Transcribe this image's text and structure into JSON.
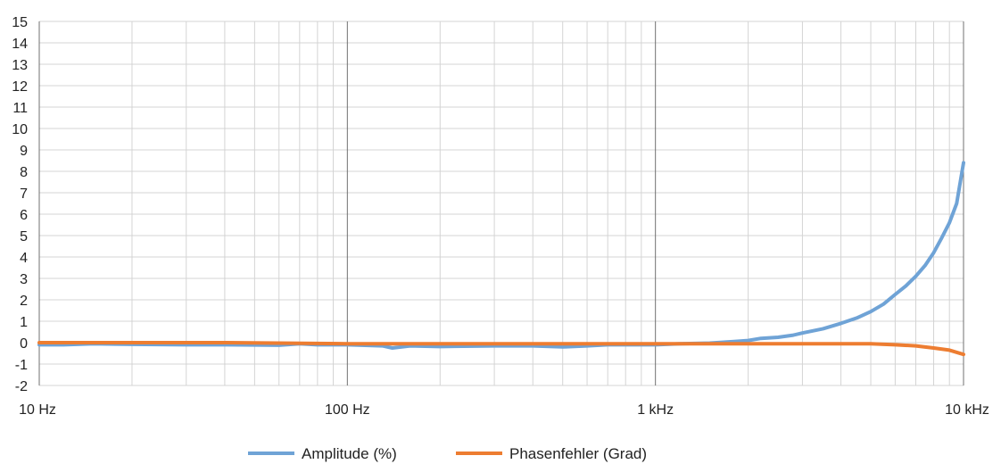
{
  "chart_data": {
    "type": "line",
    "x_scale": "log",
    "xlim": [
      10,
      10000
    ],
    "ylim": [
      -2,
      15
    ],
    "grid": true,
    "legend_position": "bottom",
    "x_ticks": [
      {
        "value": 10,
        "label": "10 Hz"
      },
      {
        "value": 100,
        "label": "100 Hz"
      },
      {
        "value": 1000,
        "label": "1 kHz"
      },
      {
        "value": 10000,
        "label": "10 kHz"
      }
    ],
    "y_ticks": [
      {
        "value": 15,
        "label": "15"
      },
      {
        "value": 14,
        "label": "14"
      },
      {
        "value": 13,
        "label": "13"
      },
      {
        "value": 12,
        "label": "12"
      },
      {
        "value": 11,
        "label": "11"
      },
      {
        "value": 10,
        "label": "10"
      },
      {
        "value": 9,
        "label": "9"
      },
      {
        "value": 8,
        "label": "8"
      },
      {
        "value": 7,
        "label": "7"
      },
      {
        "value": 6,
        "label": "6"
      },
      {
        "value": 5,
        "label": "5"
      },
      {
        "value": 4,
        "label": "4"
      },
      {
        "value": 3,
        "label": "3"
      },
      {
        "value": 2,
        "label": "2"
      },
      {
        "value": 1,
        "label": "1"
      },
      {
        "value": 0,
        "label": "0"
      },
      {
        "value": -1,
        "label": "-1"
      },
      {
        "value": -2,
        "label": "-2"
      }
    ],
    "series": [
      {
        "name": "Amplitude (%)",
        "color": "#6fa3d6",
        "points": [
          [
            10,
            -0.1
          ],
          [
            12,
            -0.1
          ],
          [
            15,
            -0.05
          ],
          [
            20,
            -0.08
          ],
          [
            30,
            -0.1
          ],
          [
            40,
            -0.1
          ],
          [
            60,
            -0.12
          ],
          [
            70,
            -0.05
          ],
          [
            80,
            -0.1
          ],
          [
            100,
            -0.1
          ],
          [
            130,
            -0.15
          ],
          [
            140,
            -0.25
          ],
          [
            160,
            -0.15
          ],
          [
            200,
            -0.18
          ],
          [
            300,
            -0.15
          ],
          [
            400,
            -0.15
          ],
          [
            500,
            -0.2
          ],
          [
            600,
            -0.15
          ],
          [
            700,
            -0.1
          ],
          [
            800,
            -0.1
          ],
          [
            1000,
            -0.1
          ],
          [
            1200,
            -0.05
          ],
          [
            1500,
            -0.02
          ],
          [
            1800,
            0.05
          ],
          [
            2000,
            0.1
          ],
          [
            2200,
            0.2
          ],
          [
            2500,
            0.25
          ],
          [
            2800,
            0.35
          ],
          [
            3000,
            0.45
          ],
          [
            3500,
            0.65
          ],
          [
            4000,
            0.9
          ],
          [
            4500,
            1.15
          ],
          [
            5000,
            1.45
          ],
          [
            5500,
            1.8
          ],
          [
            6000,
            2.25
          ],
          [
            6500,
            2.65
          ],
          [
            7000,
            3.1
          ],
          [
            7500,
            3.6
          ],
          [
            8000,
            4.2
          ],
          [
            8500,
            4.9
          ],
          [
            9000,
            5.6
          ],
          [
            9500,
            6.5
          ],
          [
            10000,
            8.4
          ]
        ]
      },
      {
        "name": "Phasenfehler (Grad)",
        "color": "#ed7d31",
        "points": [
          [
            10,
            0.0
          ],
          [
            15,
            0.0
          ],
          [
            20,
            0.0
          ],
          [
            40,
            0.0
          ],
          [
            100,
            -0.05
          ],
          [
            200,
            -0.05
          ],
          [
            500,
            -0.05
          ],
          [
            1000,
            -0.05
          ],
          [
            2000,
            -0.05
          ],
          [
            3000,
            -0.05
          ],
          [
            4000,
            -0.05
          ],
          [
            5000,
            -0.05
          ],
          [
            6000,
            -0.1
          ],
          [
            7000,
            -0.15
          ],
          [
            8000,
            -0.25
          ],
          [
            9000,
            -0.35
          ],
          [
            10000,
            -0.55
          ]
        ]
      }
    ]
  }
}
